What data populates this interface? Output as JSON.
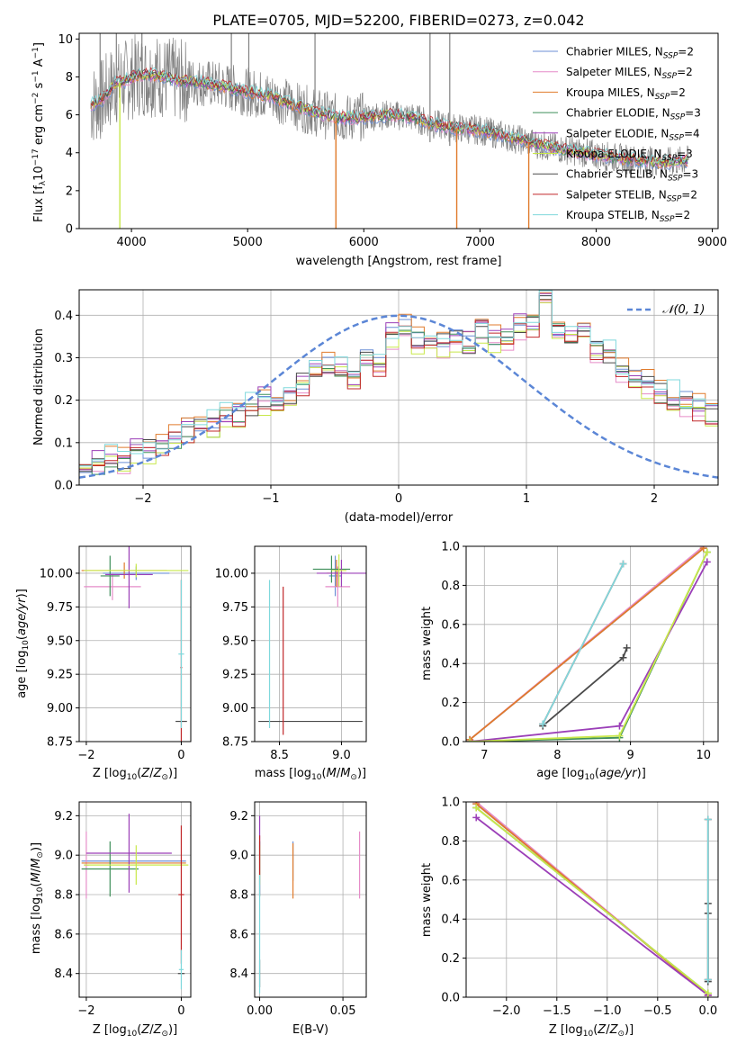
{
  "figure": {
    "title": "PLATE=0705, MJD=52200, FIBERID=0273, z=0.042"
  },
  "colors": {
    "chabrier_miles": "#6b8fd6",
    "salpeter_miles": "#e68cc8",
    "kroupa_miles": "#e07b2c",
    "chabrier_elodie": "#3f8f5a",
    "salpeter_elodie": "#9b3fb8",
    "kroupa_elodie": "#c8e84a",
    "chabrier_stelib": "#4a4a4a",
    "salpeter_stelib": "#c0282a",
    "kroupa_stelib": "#7fd8dc",
    "data": "#808080",
    "normal": "#5b86d6",
    "grid": "#b0b0b0"
  },
  "chart_data": [
    {
      "id": "spectrum",
      "type": "line",
      "title": "PLATE=0705, MJD=52200, FIBERID=0273, z=0.042",
      "xlabel": "wavelength [Angstrom, rest frame]",
      "ylabel": "Flux [f_λ 10^-17 erg cm^-2 s^-1 A^-1]",
      "xlim": [
        3550,
        9050
      ],
      "ylim": [
        0,
        10.3
      ],
      "xticks": [
        4000,
        5000,
        6000,
        7000,
        8000,
        9000
      ],
      "yticks": [
        0,
        2,
        4,
        6,
        8,
        10
      ],
      "legend_position": "top-right",
      "legend": [
        "Chabrier MILES, N_SSP=2",
        "Salpeter MILES, N_SSP=2",
        "Kroupa MILES, N_SSP=2",
        "Chabrier ELODIE, N_SSP=3",
        "Salpeter ELODIE, N_SSP=4",
        "Kroupa ELODIE, N_SSP=3",
        "Chabrier STELIB, N_SSP=3",
        "Salpeter STELIB, N_SSP=2",
        "Kroupa STELIB, N_SSP=2"
      ],
      "continuum": {
        "x": [
          3650,
          3750,
          3850,
          3950,
          4050,
          4200,
          4400,
          4600,
          4800,
          5000,
          5200,
          5400,
          5600,
          5800,
          6000,
          6200,
          6400,
          6600,
          6800,
          7000,
          7200,
          7400,
          7600,
          7800,
          8000,
          8200,
          8400,
          8600,
          8800
        ],
        "y": [
          6.5,
          6.8,
          7.6,
          7.8,
          8.1,
          8.1,
          7.8,
          7.7,
          7.5,
          7.2,
          7.0,
          6.5,
          6.1,
          5.8,
          5.9,
          6.0,
          5.9,
          5.5,
          5.3,
          5.2,
          4.9,
          4.6,
          4.3,
          4.1,
          3.9,
          3.7,
          3.6,
          3.5,
          3.6
        ]
      },
      "annotations": {
        "model_dips": [
          3900,
          5760,
          6800,
          7420
        ],
        "data_spikes": [
          3730,
          3870,
          4090,
          4860,
          5010,
          5580,
          6570,
          6740
        ]
      }
    },
    {
      "id": "residuals",
      "type": "bar",
      "xlabel": "(data-model)/error",
      "ylabel": "Normed distribution",
      "xlim": [
        -2.5,
        2.5
      ],
      "ylim": [
        0,
        0.46
      ],
      "xticks": [
        -2,
        -1,
        0,
        1,
        2
      ],
      "yticks": [
        0.0,
        0.1,
        0.2,
        0.3,
        0.4
      ],
      "bin_width": 0.1,
      "x_start": -2.5,
      "legend": [
        "𝒩(0, 1)"
      ],
      "legend_position": "top-right",
      "base_values": [
        0.04,
        0.05,
        0.06,
        0.06,
        0.08,
        0.08,
        0.09,
        0.11,
        0.13,
        0.14,
        0.14,
        0.16,
        0.17,
        0.18,
        0.2,
        0.2,
        0.21,
        0.24,
        0.27,
        0.28,
        0.27,
        0.25,
        0.3,
        0.28,
        0.35,
        0.37,
        0.34,
        0.32,
        0.33,
        0.35,
        0.33,
        0.37,
        0.35,
        0.34,
        0.37,
        0.38,
        0.42,
        0.37,
        0.35,
        0.36,
        0.32,
        0.31,
        0.27,
        0.24,
        0.24,
        0.22,
        0.21,
        0.19,
        0.18,
        0.16,
        0.15,
        0.13,
        0.12,
        0.1,
        0.09,
        0.08,
        0.07,
        0.06,
        0.05,
        0.04
      ],
      "offsets": [
        0.006,
        -0.01,
        0.012,
        -0.004,
        0.009,
        -0.013,
        0.003,
        -0.007,
        0.014
      ]
    },
    {
      "id": "age_vs_Z",
      "type": "scatter",
      "xlabel": "Z [log10(Z/Z⊙)]",
      "ylabel": "age [log10(age/yr)]",
      "xlim": [
        -2.15,
        0.2
      ],
      "ylim": [
        8.75,
        10.2
      ],
      "xticks": [
        -2,
        0
      ],
      "yticks": [
        8.75,
        9.0,
        9.25,
        9.5,
        9.75,
        10.0
      ],
      "points": [
        {
          "model": "chabrier_miles",
          "x": -0.95,
          "y": 10.0,
          "xerr": 0.7,
          "yerr": 0.05
        },
        {
          "model": "salpeter_miles",
          "x": -1.45,
          "y": 9.9,
          "xerr": 0.6,
          "yerr": 0.1
        },
        {
          "model": "kroupa_miles",
          "x": -1.2,
          "y": 10.02,
          "xerr": 0.9,
          "yerr": 0.06
        },
        {
          "model": "chabrier_elodie",
          "x": -1.5,
          "y": 9.98,
          "xerr": 0.2,
          "yerr": 0.15
        },
        {
          "model": "salpeter_elodie",
          "x": -1.1,
          "y": 9.99,
          "xerr": 0.5,
          "yerr": 0.25
        },
        {
          "model": "kroupa_elodie",
          "x": -0.95,
          "y": 10.02,
          "xerr": 1.1,
          "yerr": 0.05
        },
        {
          "model": "chabrier_stelib",
          "x": 0.0,
          "y": 8.9,
          "xerr": 0.12,
          "yerr": 0.0
        },
        {
          "model": "salpeter_stelib",
          "x": 0.0,
          "y": 9.3,
          "xerr": 0.02,
          "yerr": 0.65
        },
        {
          "model": "kroupa_stelib",
          "x": 0.0,
          "y": 9.4,
          "xerr": 0.06,
          "yerr": 0.55
        }
      ]
    },
    {
      "id": "age_vs_mass",
      "type": "scatter",
      "xlabel": "mass [log10(M/M⊙)]",
      "ylabel": "",
      "xlim": [
        8.3,
        9.2
      ],
      "ylim": [
        8.75,
        10.2
      ],
      "xticks": [
        8.5,
        9.0
      ],
      "yticks": [
        8.75,
        9.0,
        9.25,
        9.5,
        9.75,
        10.0
      ],
      "points": [
        {
          "model": "chabrier_miles",
          "x": 8.95,
          "y": 9.98,
          "xerr": 0.05,
          "yerr": 0.15
        },
        {
          "model": "salpeter_miles",
          "x": 8.97,
          "y": 9.9,
          "xerr": 0.1,
          "yerr": 0.15
        },
        {
          "model": "kroupa_miles",
          "x": 8.96,
          "y": 10.0,
          "xerr": 0.08,
          "yerr": 0.1
        },
        {
          "model": "chabrier_elodie",
          "x": 8.92,
          "y": 10.03,
          "xerr": 0.15,
          "yerr": 0.1
        },
        {
          "model": "salpeter_elodie",
          "x": 9.0,
          "y": 10.0,
          "xerr": 0.2,
          "yerr": 0.1
        },
        {
          "model": "kroupa_elodie",
          "x": 8.98,
          "y": 10.02,
          "xerr": 0.06,
          "yerr": 0.12
        },
        {
          "model": "chabrier_stelib",
          "x": 8.75,
          "y": 8.9,
          "xerr": 0.42,
          "yerr": 0.0
        },
        {
          "model": "salpeter_stelib",
          "x": 8.53,
          "y": 9.35,
          "xerr": 0.0,
          "yerr": 0.55
        },
        {
          "model": "kroupa_stelib",
          "x": 8.42,
          "y": 9.4,
          "xerr": 0.0,
          "yerr": 0.55
        }
      ]
    },
    {
      "id": "weight_vs_age",
      "type": "line",
      "xlabel": "age [log10(age/yr)]",
      "ylabel": "mass weight",
      "xlim": [
        6.75,
        10.2
      ],
      "ylim": [
        0,
        1.0
      ],
      "xticks": [
        7,
        8,
        9,
        10
      ],
      "yticks": [
        0.0,
        0.2,
        0.4,
        0.6,
        0.8,
        1.0
      ],
      "series": [
        {
          "model": "chabrier_miles",
          "x": [
            6.8,
            10.0
          ],
          "y": [
            0.01,
            0.99
          ]
        },
        {
          "model": "salpeter_miles",
          "x": [
            6.8,
            10.0
          ],
          "y": [
            0.01,
            1.0
          ]
        },
        {
          "model": "kroupa_miles",
          "x": [
            6.8,
            10.0
          ],
          "y": [
            0.01,
            0.99
          ]
        },
        {
          "model": "chabrier_elodie",
          "x": [
            6.8,
            8.85,
            10.05
          ],
          "y": [
            0.0,
            0.02,
            0.97
          ]
        },
        {
          "model": "salpeter_elodie",
          "x": [
            6.8,
            8.85,
            10.05
          ],
          "y": [
            0.0,
            0.08,
            0.92
          ]
        },
        {
          "model": "kroupa_elodie",
          "x": [
            6.8,
            8.85,
            10.05
          ],
          "y": [
            0.0,
            0.03,
            0.97
          ]
        },
        {
          "model": "chabrier_stelib",
          "x": [
            7.8,
            8.9,
            8.95
          ],
          "y": [
            0.08,
            0.43,
            0.48
          ]
        },
        {
          "model": "salpeter_stelib",
          "x": [
            7.8,
            8.9
          ],
          "y": [
            0.09,
            0.91
          ]
        },
        {
          "model": "kroupa_stelib",
          "x": [
            7.8,
            8.9
          ],
          "y": [
            0.09,
            0.91
          ]
        }
      ]
    },
    {
      "id": "mass_vs_Z",
      "type": "scatter",
      "xlabel": "Z [log10(Z/Z⊙)]",
      "ylabel": "mass [log10(M/M⊙)]",
      "xlim": [
        -2.15,
        0.2
      ],
      "ylim": [
        8.28,
        9.27
      ],
      "xticks": [
        -2,
        0
      ],
      "yticks": [
        8.4,
        8.6,
        8.8,
        9.0,
        9.2
      ],
      "points": [
        {
          "model": "chabrier_miles",
          "x": -1.0,
          "y": 8.97,
          "xerr": 1.1,
          "yerr": 0.0
        },
        {
          "model": "salpeter_miles",
          "x": -2.0,
          "y": 8.95,
          "xerr": 0.05,
          "yerr": 0.17
        },
        {
          "model": "kroupa_miles",
          "x": -1.0,
          "y": 8.96,
          "xerr": 1.1,
          "yerr": 0.0
        },
        {
          "model": "chabrier_elodie",
          "x": -1.5,
          "y": 8.93,
          "xerr": 0.6,
          "yerr": 0.14
        },
        {
          "model": "salpeter_elodie",
          "x": -1.1,
          "y": 9.01,
          "xerr": 0.9,
          "yerr": 0.2
        },
        {
          "model": "kroupa_elodie",
          "x": -0.95,
          "y": 8.95,
          "xerr": 1.1,
          "yerr": 0.1
        },
        {
          "model": "chabrier_stelib",
          "x": 0.0,
          "y": 8.4,
          "xerr": 0.07,
          "yerr": 0.0
        },
        {
          "model": "salpeter_stelib",
          "x": 0.0,
          "y": 8.8,
          "xerr": 0.06,
          "yerr": 0.35
        },
        {
          "model": "kroupa_stelib",
          "x": 0.0,
          "y": 8.42,
          "xerr": 0.05,
          "yerr": 0.1
        }
      ]
    },
    {
      "id": "mass_vs_ebv",
      "type": "scatter",
      "xlabel": "E(B-V)",
      "ylabel": "",
      "xlim": [
        -0.003,
        0.064
      ],
      "ylim": [
        8.28,
        9.27
      ],
      "xticks": [
        0.0,
        0.05
      ],
      "yticks": [
        8.4,
        8.6,
        8.8,
        9.0,
        9.2
      ],
      "points": [
        {
          "model": "chabrier_miles",
          "x": 0.02,
          "y": 8.97,
          "yerr": 0.1
        },
        {
          "model": "salpeter_miles",
          "x": 0.06,
          "y": 8.95,
          "yerr": 0.17
        },
        {
          "model": "kroupa_miles",
          "x": 0.02,
          "y": 8.92,
          "yerr": 0.14
        },
        {
          "model": "chabrier_elodie",
          "x": 0.0,
          "y": 8.93,
          "yerr": 0.14
        },
        {
          "model": "salpeter_elodie",
          "x": 0.0,
          "y": 9.0,
          "yerr": 0.2
        },
        {
          "model": "kroupa_elodie",
          "x": 0.0,
          "y": 8.95,
          "yerr": 0.1
        },
        {
          "model": "chabrier_stelib",
          "x": 0.0,
          "y": 8.4,
          "yerr": 0.07
        },
        {
          "model": "salpeter_stelib",
          "x": 0.0,
          "y": 9.0,
          "yerr": 0.1
        },
        {
          "model": "kroupa_stelib",
          "x": 0.0,
          "y": 8.6,
          "yerr": 0.3
        }
      ]
    },
    {
      "id": "weight_vs_Z",
      "type": "line",
      "xlabel": "Z [log10(Z/Z⊙)]",
      "ylabel": "mass weight",
      "xlim": [
        -2.4,
        0.1
      ],
      "ylim": [
        0,
        1.0
      ],
      "xticks": [
        -2.0,
        -1.5,
        -1.0,
        -0.5,
        0.0
      ],
      "yticks": [
        0.0,
        0.2,
        0.4,
        0.6,
        0.8,
        1.0
      ],
      "series": [
        {
          "model": "chabrier_miles",
          "x": [
            -2.3,
            0.0
          ],
          "y": [
            0.99,
            0.01
          ]
        },
        {
          "model": "salpeter_miles",
          "x": [
            -2.3,
            0.0
          ],
          "y": [
            1.0,
            0.01
          ]
        },
        {
          "model": "kroupa_miles",
          "x": [
            -2.3,
            0.0
          ],
          "y": [
            0.99,
            0.01
          ]
        },
        {
          "model": "chabrier_elodie",
          "x": [
            -2.3,
            0.0
          ],
          "y": [
            0.97,
            0.02
          ]
        },
        {
          "model": "salpeter_elodie",
          "x": [
            -2.3,
            0.0
          ],
          "y": [
            0.92,
            0.01
          ]
        },
        {
          "model": "kroupa_elodie",
          "x": [
            -2.3,
            0.0
          ],
          "y": [
            0.97,
            0.02
          ]
        },
        {
          "model": "chabrier_stelib",
          "x": [
            0.0,
            0.0,
            0.0
          ],
          "y": [
            0.08,
            0.43,
            0.48
          ]
        },
        {
          "model": "salpeter_stelib",
          "x": [
            0.0,
            0.0
          ],
          "y": [
            0.09,
            0.91
          ]
        },
        {
          "model": "kroupa_stelib",
          "x": [
            0.0,
            0.0
          ],
          "y": [
            0.09,
            0.91
          ]
        }
      ]
    }
  ]
}
